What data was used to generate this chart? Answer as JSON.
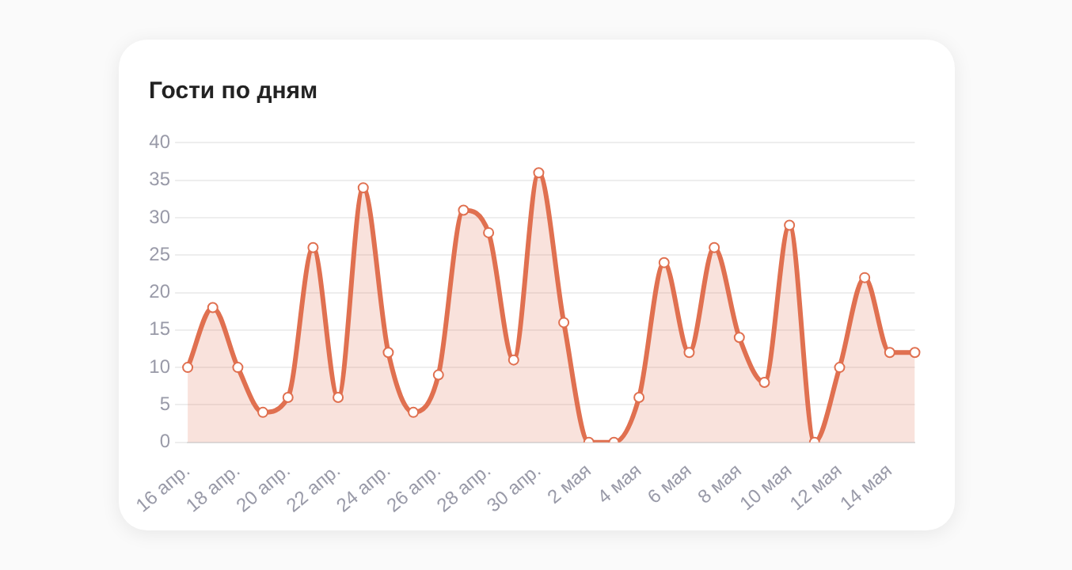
{
  "chart_data": {
    "type": "area",
    "title": "Гости по дням",
    "categories": [
      "16 апр.",
      null,
      "18 апр.",
      null,
      "20 апр.",
      null,
      "22 апр.",
      null,
      "24 апр.",
      null,
      "26 апр.",
      null,
      "28 апр.",
      null,
      "30 апр.",
      null,
      "2 мая",
      null,
      "4 мая",
      null,
      "6 мая",
      null,
      "8 мая",
      null,
      "10 мая",
      null,
      "12 мая",
      null,
      "14 мая",
      null
    ],
    "series": [
      {
        "color": "#e07050",
        "values": [
          10,
          18,
          10,
          4,
          6,
          26,
          6,
          34,
          12,
          4,
          9,
          31,
          28,
          11,
          36,
          16,
          0,
          0,
          6,
          24,
          12,
          26,
          14,
          8,
          29,
          0,
          10,
          22,
          12,
          12
        ]
      }
    ],
    "ylim": [
      0,
      40
    ],
    "yticks": [
      0,
      5,
      10,
      15,
      20,
      25,
      30,
      35,
      40
    ],
    "grid": "y",
    "legend": false,
    "marker": "circle"
  }
}
